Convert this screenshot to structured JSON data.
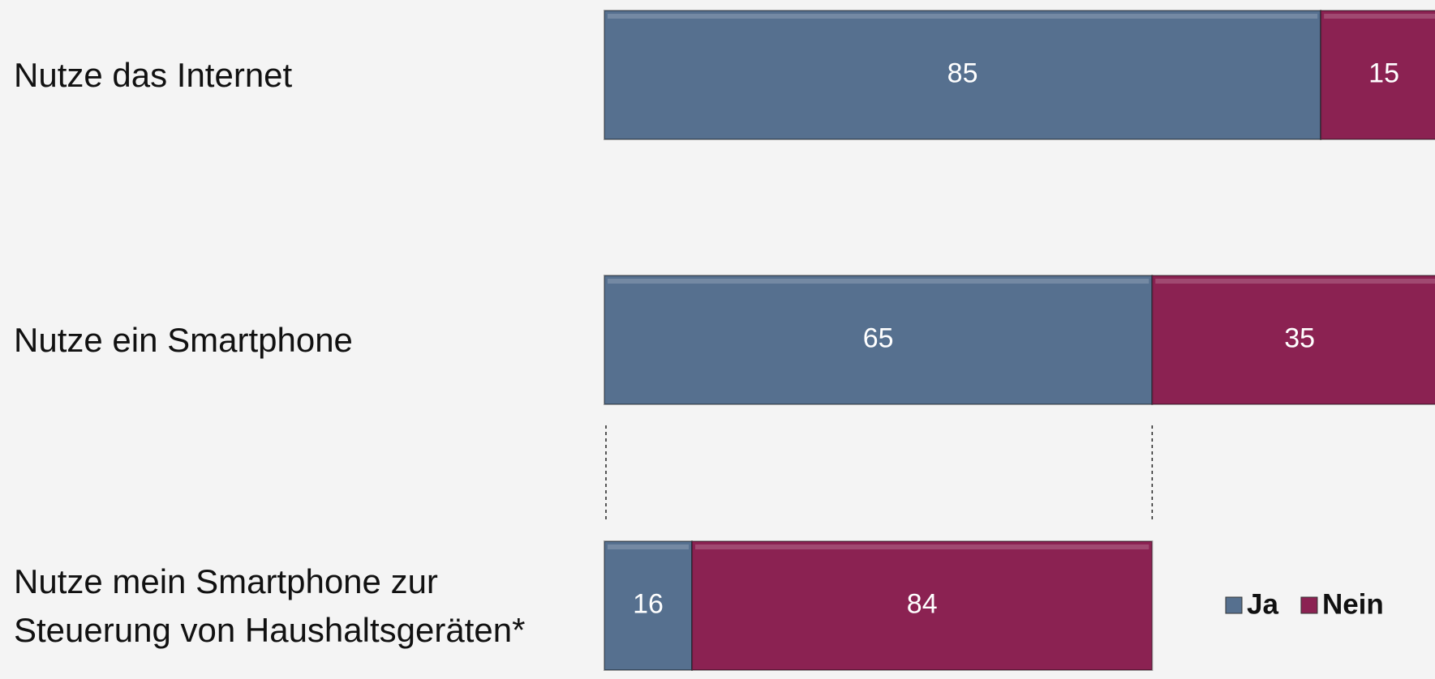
{
  "chart_data": {
    "type": "stacked_barh",
    "categories": [
      "Nutze das Internet",
      "Nutze ein Smartphone",
      "Nutze mein Smartphone zur\nSteuerung von Haushaltsgeräten*"
    ],
    "series": [
      {
        "name": "Ja",
        "color": "#56708f",
        "values": [
          85,
          65,
          16
        ]
      },
      {
        "name": "Nein",
        "color": "#8b2252",
        "values": [
          15,
          35,
          84
        ]
      }
    ],
    "xlim": [
      0,
      100
    ],
    "legend": "lower right"
  }
}
